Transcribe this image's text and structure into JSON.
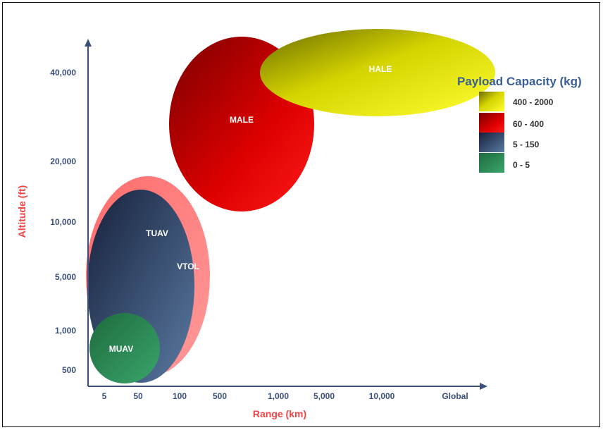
{
  "chart_data": {
    "type": "scatter",
    "title": "",
    "xlabel": "Range (km)",
    "ylabel": "Altitude (ft)",
    "x_ticks": [
      "5",
      "50",
      "100",
      "500",
      "1,000",
      "5,000",
      "10,000",
      "Global"
    ],
    "y_ticks": [
      "40,000",
      "20,000",
      "10,000",
      "5,000",
      "1,000",
      "500"
    ],
    "legend": {
      "title": "Payload Capacity (kg)",
      "placement": "right",
      "items": [
        {
          "label": "400 - 2000",
          "color": "#e6e600"
        },
        {
          "label": "60 - 400",
          "color": "#cc0000"
        },
        {
          "label": "5 - 150",
          "color": "#2e4466"
        },
        {
          "label": "0 - 5",
          "color": "#2e8b57"
        }
      ]
    },
    "regions": [
      {
        "name": "VTOL",
        "payload": "5 - 150",
        "color": "#f87878",
        "x_range": [
          "5",
          "100"
        ],
        "y_range": [
          "500",
          "10,000"
        ]
      },
      {
        "name": "TUAV",
        "payload": "5 - 150",
        "color": "#2e4466",
        "x_range": [
          "5",
          "100"
        ],
        "y_range": [
          "500",
          "10,000"
        ]
      },
      {
        "name": "MUAV",
        "payload": "0 - 5",
        "color": "#2e8b57",
        "x_range": [
          "5",
          "50"
        ],
        "y_range": [
          "500",
          "1,000"
        ]
      },
      {
        "name": "MALE",
        "payload": "60 - 400",
        "color": "#cc0000",
        "x_range": [
          "100",
          "1,000"
        ],
        "y_range": [
          "10,000",
          "40,000"
        ]
      },
      {
        "name": "HALE",
        "payload": "400 - 2000",
        "color": "#e6e600",
        "x_range": [
          "1,000",
          "Global"
        ],
        "y_range": [
          "20,000",
          "40,000"
        ]
      }
    ],
    "grid": false
  }
}
